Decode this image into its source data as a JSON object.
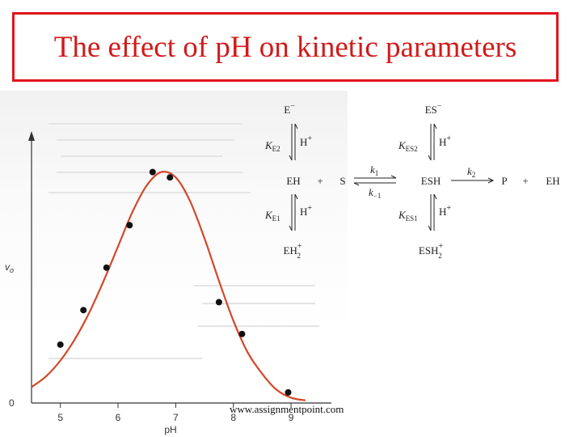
{
  "slide": {
    "title": "The effect of pH on kinetic parameters",
    "watermark": "www.assignmentpoint.com"
  },
  "colors": {
    "title": "#d11a1a",
    "title_border": "#e0141c",
    "curve": "#d4472a",
    "points": "#111111",
    "axis": "#333333"
  },
  "chart_data": {
    "type": "scatter",
    "xlabel": "pH",
    "ylabel": "vo",
    "xlim": [
      4.5,
      9.7
    ],
    "ylim": [
      0,
      1.0
    ],
    "xticks": [
      5,
      6,
      7,
      8,
      9
    ],
    "yticks": [
      0
    ],
    "ytick_labels": [
      "0"
    ],
    "grid": false,
    "series": [
      {
        "kind": "points",
        "x": [
          5.0,
          5.4,
          5.8,
          6.2,
          6.6,
          6.9,
          7.75,
          8.15,
          8.95
        ],
        "y": [
          0.22,
          0.35,
          0.51,
          0.67,
          0.87,
          0.85,
          0.38,
          0.26,
          0.04
        ]
      },
      {
        "kind": "fitted-curve",
        "x": [
          4.5,
          4.75,
          5.0,
          5.25,
          5.5,
          5.75,
          6.0,
          6.25,
          6.5,
          6.75,
          7.0,
          7.25,
          7.5,
          7.75,
          8.0,
          8.25,
          8.5,
          8.75,
          9.0,
          9.25
        ],
        "y": [
          0.06,
          0.1,
          0.16,
          0.24,
          0.34,
          0.46,
          0.59,
          0.72,
          0.82,
          0.87,
          0.85,
          0.76,
          0.62,
          0.46,
          0.31,
          0.19,
          0.11,
          0.05,
          0.02,
          0.01
        ]
      }
    ]
  },
  "scheme": {
    "e_minus": "E",
    "es_minus": "ES",
    "minus": "−",
    "plus_sign": "+",
    "h_plus": "H+",
    "h_label": "H",
    "k_sym": "K",
    "sub_e2": "E2",
    "sub_e1": "E1",
    "sub_es2": "ES2",
    "sub_es1": "ES1",
    "eh": "EH",
    "s": "S",
    "esh": "ESH",
    "p": "P",
    "eh_product": "EH",
    "k_lower": "k",
    "sub_1": "1",
    "sub_minus1": "−1",
    "sub_2": "2",
    "eh2": "EH",
    "esh2": "ESH"
  }
}
